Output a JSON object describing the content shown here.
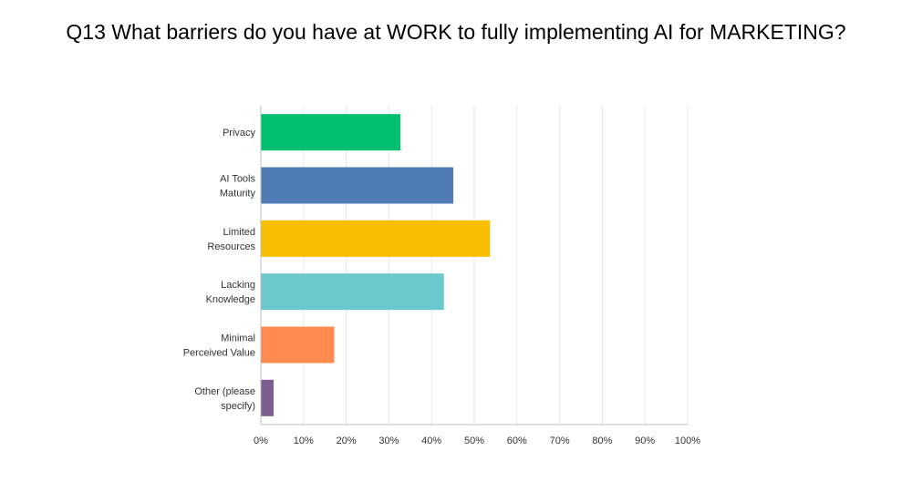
{
  "chart_data": {
    "type": "bar",
    "orientation": "horizontal",
    "title": "Q13 What barriers do you have at WORK to fully implementing AI for MARKETING?",
    "categories": [
      [
        "Privacy"
      ],
      [
        "AI Tools",
        "Maturity"
      ],
      [
        "Limited",
        "Resources"
      ],
      [
        "Lacking",
        "Knowledge"
      ],
      [
        "Minimal",
        "Perceived Value"
      ],
      [
        "Other (please",
        "specify)"
      ]
    ],
    "values": [
      32.7,
      45.1,
      53.7,
      42.9,
      17.2,
      3.0
    ],
    "colors": [
      "#00bf6f",
      "#507cb6",
      "#f9be00",
      "#6bc8cd",
      "#ff8b4f",
      "#7d5e90"
    ],
    "xlim": [
      0,
      100
    ],
    "xticks": [
      "0%",
      "10%",
      "20%",
      "30%",
      "40%",
      "50%",
      "60%",
      "70%",
      "80%",
      "90%",
      "100%"
    ],
    "grid": true,
    "legend": "none"
  }
}
